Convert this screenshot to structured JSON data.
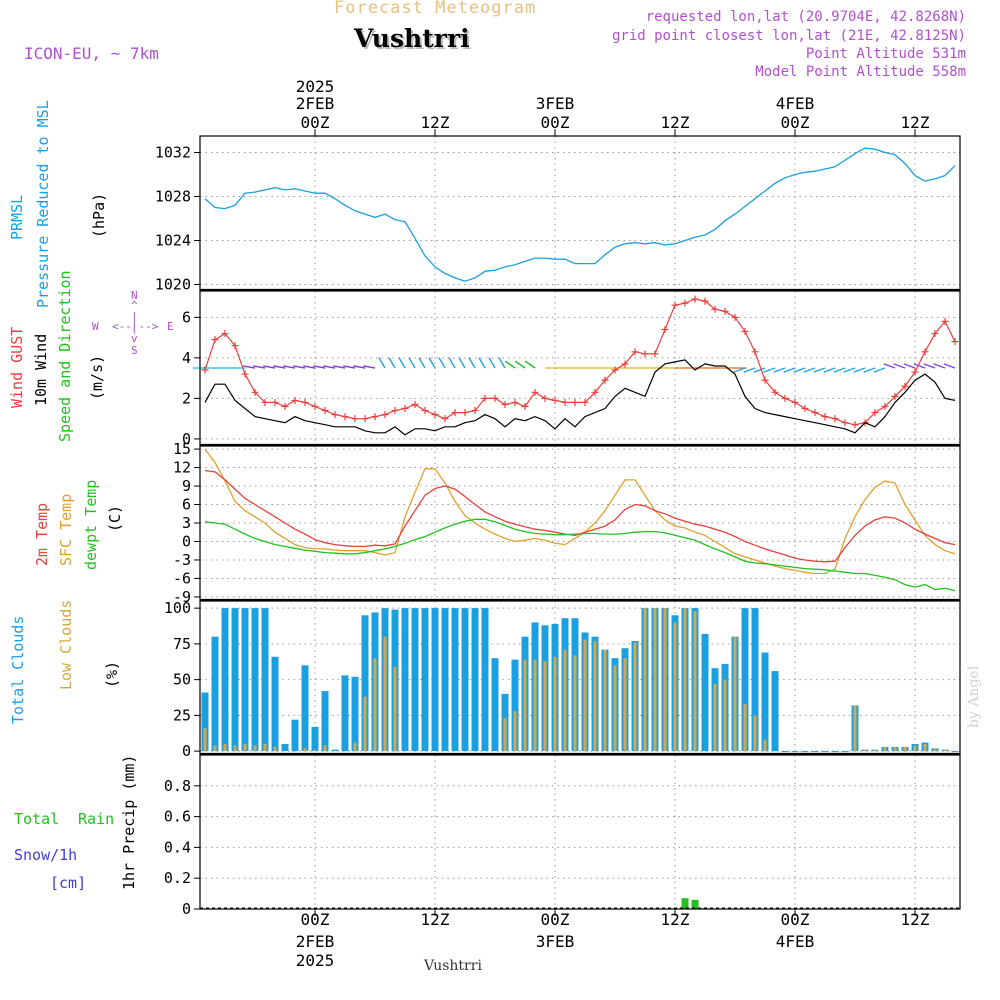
{
  "header": {
    "forecast_title": "Forecast Meteogram",
    "location": "Vushtrri",
    "model": "ICON-EU, ~ 7km",
    "requested": "requested lon,lat (20.9704E, 42.8268N)",
    "grid_point": "grid point closest lon,lat (21E, 42.8125N)",
    "point_altitude": "Point Altitude 531m",
    "model_altitude": "Model Point Altitude 558m",
    "footer_location": "Vushtrri",
    "credit": "by Angel"
  },
  "time_axis": {
    "year_label": "2025",
    "ticks": [
      {
        "hour": 24,
        "label": "00Z",
        "date": "2FEB",
        "year": "2025"
      },
      {
        "hour": 36,
        "label": "12Z",
        "date": "",
        "year": ""
      },
      {
        "hour": 48,
        "label": "00Z",
        "date": "3FEB",
        "year": ""
      },
      {
        "hour": 60,
        "label": "12Z",
        "date": "",
        "year": ""
      },
      {
        "hour": 72,
        "label": "00Z",
        "date": "4FEB",
        "year": ""
      },
      {
        "hour": 84,
        "label": "12Z",
        "date": "",
        "year": ""
      }
    ],
    "range": [
      12.5,
      88.5
    ]
  },
  "panel_labels": {
    "pressure": [
      "PRMSL",
      "Pressure Reduced to MSL",
      "(hPa)"
    ],
    "wind": [
      "Wind GUST",
      "10m Wind",
      "Speed and Direction",
      "(m/s)"
    ],
    "compass": {
      "n": "N",
      "s": "S",
      "w": "W",
      "e": "E"
    },
    "temp": [
      "2m Temp",
      "SFC Temp",
      "dewpt Temp",
      "(C)"
    ],
    "clouds": [
      "Total Clouds",
      "Low Clouds",
      "(%)"
    ],
    "precip": [
      "Total",
      "Rain",
      "Snow/1h",
      "[cm]",
      "1hr Precip (mm)"
    ]
  },
  "colors": {
    "pressure": "#1a9fe0",
    "gust": "#e8403c",
    "wind": "#000000",
    "sfc_temp": "#e0a030",
    "t2m": "#e8403c",
    "dewpt": "#22c022",
    "total_clouds": "#1a9fe0",
    "low_clouds": "#d4a848",
    "rain": "#22c022",
    "title": "#e8c080",
    "info": "#b050d0",
    "snow": "#4040d0"
  },
  "chart_data": [
    {
      "type": "line",
      "name": "pressure",
      "ylim": [
        1019.5,
        1033.5
      ],
      "yticks": [
        1020,
        1024,
        1028,
        1032
      ],
      "x": [
        13,
        14,
        15,
        16,
        17,
        18,
        19,
        20,
        21,
        22,
        23,
        24,
        25,
        26,
        27,
        28,
        29,
        30,
        31,
        32,
        33,
        34,
        35,
        36,
        37,
        38,
        39,
        40,
        41,
        42,
        43,
        44,
        45,
        46,
        47,
        48,
        49,
        50,
        51,
        52,
        53,
        54,
        55,
        56,
        57,
        58,
        59,
        60,
        61,
        62,
        63,
        64,
        65,
        66,
        67,
        68,
        69,
        70,
        71,
        72,
        73,
        74,
        75,
        76,
        77,
        78,
        79,
        80,
        81,
        82,
        83,
        84,
        85,
        86,
        87,
        88
      ],
      "series": [
        {
          "values": [
            1027.8,
            1027.0,
            1026.9,
            1027.2,
            1028.3,
            1028.4,
            1028.6,
            1028.8,
            1028.6,
            1028.7,
            1028.5,
            1028.3,
            1028.3,
            1027.8,
            1027.2,
            1026.7,
            1026.4,
            1026.1,
            1026.4,
            1025.9,
            1025.7,
            1024.2,
            1022.6,
            1021.6,
            1021.0,
            1020.6,
            1020.3,
            1020.6,
            1021.2,
            1021.3,
            1021.6,
            1021.8,
            1022.1,
            1022.4,
            1022.4,
            1022.3,
            1022.3,
            1021.9,
            1021.9,
            1021.9,
            1022.7,
            1023.4,
            1023.7,
            1023.8,
            1023.7,
            1023.8,
            1023.6,
            1023.7,
            1024.0,
            1024.3,
            1024.5,
            1025.0,
            1025.8,
            1026.4,
            1027.1,
            1027.8,
            1028.5,
            1029.2,
            1029.7,
            1030.0,
            1030.2,
            1030.3,
            1030.5,
            1030.7,
            1031.3,
            1031.9,
            1032.4,
            1032.3,
            1032.0,
            1031.8,
            1031.0,
            1029.9,
            1029.4,
            1029.6,
            1029.9,
            1030.8
          ]
        }
      ]
    },
    {
      "type": "line",
      "name": "wind",
      "ylim": [
        -0.3,
        7.3
      ],
      "yticks": [
        0,
        2,
        4,
        6
      ],
      "x": [
        13,
        14,
        15,
        16,
        17,
        18,
        19,
        20,
        21,
        22,
        23,
        24,
        25,
        26,
        27,
        28,
        29,
        30,
        31,
        32,
        33,
        34,
        35,
        36,
        37,
        38,
        39,
        40,
        41,
        42,
        43,
        44,
        45,
        46,
        47,
        48,
        49,
        50,
        51,
        52,
        53,
        54,
        55,
        56,
        57,
        58,
        59,
        60,
        61,
        62,
        63,
        64,
        65,
        66,
        67,
        68,
        69,
        70,
        71,
        72,
        73,
        74,
        75,
        76,
        77,
        78,
        79,
        80,
        81,
        82,
        83,
        84,
        85,
        86,
        87,
        88
      ],
      "series": [
        {
          "name": "gust",
          "values": [
            3.4,
            4.9,
            5.2,
            4.6,
            3.2,
            2.3,
            1.8,
            1.8,
            1.6,
            1.9,
            1.8,
            1.6,
            1.4,
            1.2,
            1.1,
            1.0,
            1.0,
            1.1,
            1.2,
            1.4,
            1.5,
            1.7,
            1.4,
            1.2,
            1.0,
            1.3,
            1.3,
            1.4,
            2.0,
            2.0,
            1.7,
            1.8,
            1.6,
            2.3,
            2.0,
            1.9,
            1.8,
            1.8,
            1.8,
            2.3,
            2.9,
            3.4,
            3.7,
            4.3,
            4.2,
            4.2,
            5.4,
            6.6,
            6.7,
            6.9,
            6.8,
            6.4,
            6.3,
            6.0,
            5.3,
            4.3,
            2.9,
            2.3,
            2.0,
            1.8,
            1.5,
            1.3,
            1.1,
            1.0,
            0.8,
            0.7,
            0.8,
            1.3,
            1.6,
            2.1,
            2.6,
            3.3,
            4.3,
            5.2,
            5.8,
            4.8
          ]
        },
        {
          "name": "wind",
          "values": [
            1.8,
            2.7,
            2.7,
            1.9,
            1.5,
            1.1,
            1.0,
            0.9,
            0.8,
            1.1,
            0.9,
            0.8,
            0.7,
            0.6,
            0.6,
            0.6,
            0.4,
            0.3,
            0.3,
            0.6,
            0.2,
            0.5,
            0.5,
            0.4,
            0.6,
            0.6,
            0.8,
            0.9,
            1.2,
            1.0,
            0.6,
            1.0,
            0.9,
            1.1,
            0.9,
            0.5,
            1.0,
            0.6,
            1.1,
            1.3,
            1.5,
            2.1,
            2.5,
            2.3,
            2.1,
            3.3,
            3.7,
            3.8,
            3.9,
            3.4,
            3.7,
            3.6,
            3.6,
            3.2,
            2.1,
            1.5,
            1.3,
            1.2,
            1.1,
            1.0,
            0.9,
            0.8,
            0.7,
            0.6,
            0.5,
            0.3,
            0.8,
            0.6,
            1.1,
            1.8,
            2.3,
            2.9,
            3.2,
            2.8,
            2.0,
            1.9
          ]
        }
      ]
    },
    {
      "type": "line",
      "name": "temperature",
      "ylim": [
        -9.5,
        15.5
      ],
      "yticks": [
        -9,
        -6,
        -3,
        0,
        3,
        6,
        9,
        12,
        15
      ],
      "x": [
        13,
        14,
        15,
        16,
        17,
        18,
        19,
        20,
        21,
        22,
        23,
        24,
        25,
        26,
        27,
        28,
        29,
        30,
        31,
        32,
        33,
        34,
        35,
        36,
        37,
        38,
        39,
        40,
        41,
        42,
        43,
        44,
        45,
        46,
        47,
        48,
        49,
        50,
        51,
        52,
        53,
        54,
        55,
        56,
        57,
        58,
        59,
        60,
        61,
        62,
        63,
        64,
        65,
        66,
        67,
        68,
        69,
        70,
        71,
        72,
        73,
        74,
        75,
        76,
        77,
        78,
        79,
        80,
        81,
        82,
        83,
        84,
        85,
        86,
        87,
        88
      ],
      "series": [
        {
          "name": "sfc",
          "values": [
            15.0,
            12.8,
            9.8,
            6.5,
            5.0,
            4.0,
            3.0,
            1.5,
            0.5,
            -0.5,
            -1.0,
            -1.2,
            -1.2,
            -1.4,
            -1.5,
            -1.5,
            -1.5,
            -1.8,
            -2.2,
            -1.8,
            4.0,
            8.0,
            11.8,
            11.8,
            9.5,
            6.5,
            4.2,
            3.0,
            2.0,
            1.2,
            0.5,
            0.0,
            0.2,
            0.5,
            0.2,
            -0.3,
            -0.5,
            0.5,
            1.5,
            3.0,
            5.0,
            7.5,
            10.0,
            10.0,
            7.5,
            5.0,
            3.5,
            2.5,
            2.2,
            1.5,
            1.0,
            0.0,
            -1.0,
            -2.0,
            -2.5,
            -3.0,
            -3.5,
            -4.0,
            -4.4,
            -4.7,
            -5.0,
            -5.2,
            -5.2,
            -4.5,
            0.5,
            4.0,
            6.8,
            8.8,
            9.8,
            9.5,
            6.0,
            3.5,
            1.0,
            -0.5,
            -1.5,
            -2.0
          ]
        },
        {
          "name": "t2m",
          "values": [
            11.5,
            11.3,
            10.0,
            8.5,
            7.0,
            6.0,
            5.0,
            4.0,
            3.0,
            2.0,
            1.2,
            0.3,
            -0.2,
            -0.5,
            -0.7,
            -0.8,
            -0.8,
            -0.6,
            -0.7,
            -0.4,
            2.5,
            5.0,
            7.5,
            8.6,
            9.0,
            8.5,
            7.3,
            6.0,
            4.8,
            4.0,
            3.3,
            2.8,
            2.4,
            2.0,
            1.8,
            1.5,
            1.2,
            1.0,
            1.5,
            2.0,
            2.5,
            3.5,
            5.2,
            6.0,
            5.8,
            5.0,
            4.5,
            3.8,
            3.3,
            2.8,
            2.5,
            2.0,
            1.5,
            0.8,
            0.0,
            -0.6,
            -1.2,
            -1.7,
            -2.2,
            -2.7,
            -3.0,
            -3.2,
            -3.3,
            -3.2,
            -1.0,
            1.0,
            2.5,
            3.5,
            4.0,
            3.8,
            3.0,
            2.0,
            1.2,
            0.5,
            -0.2,
            -0.5
          ]
        },
        {
          "name": "dewpt",
          "values": [
            3.2,
            3.0,
            2.8,
            2.0,
            1.2,
            0.5,
            0.0,
            -0.5,
            -0.8,
            -1.1,
            -1.4,
            -1.6,
            -1.8,
            -1.9,
            -2.0,
            -2.0,
            -1.8,
            -1.5,
            -1.2,
            -0.8,
            -0.3,
            0.3,
            0.8,
            1.5,
            2.2,
            2.8,
            3.3,
            3.6,
            3.6,
            3.2,
            2.6,
            2.0,
            1.6,
            1.3,
            1.2,
            1.1,
            1.1,
            1.2,
            1.3,
            1.3,
            1.2,
            1.2,
            1.3,
            1.5,
            1.6,
            1.6,
            1.4,
            1.0,
            0.6,
            0.2,
            -0.5,
            -1.2,
            -1.8,
            -2.5,
            -3.2,
            -3.5,
            -3.6,
            -3.8,
            -4.0,
            -4.2,
            -4.4,
            -4.5,
            -4.6,
            -4.8,
            -5.0,
            -5.2,
            -5.2,
            -5.5,
            -5.8,
            -6.2,
            -7.0,
            -7.4,
            -7.0,
            -7.8,
            -7.6,
            -8.0
          ]
        }
      ]
    },
    {
      "type": "bar",
      "name": "clouds",
      "ylim": [
        -2,
        105
      ],
      "yticks": [
        0,
        25,
        50,
        75,
        100
      ],
      "x": [
        13,
        14,
        15,
        16,
        17,
        18,
        19,
        20,
        21,
        22,
        23,
        24,
        25,
        26,
        27,
        28,
        29,
        30,
        31,
        32,
        33,
        34,
        35,
        36,
        37,
        38,
        39,
        40,
        41,
        42,
        43,
        44,
        45,
        46,
        47,
        48,
        49,
        50,
        51,
        52,
        53,
        54,
        55,
        56,
        57,
        58,
        59,
        60,
        61,
        62,
        63,
        64,
        65,
        66,
        67,
        68,
        69,
        70,
        71,
        72,
        73,
        74,
        75,
        76,
        77,
        78,
        79,
        80,
        81,
        82,
        83,
        84,
        85,
        86,
        87,
        88
      ],
      "series": [
        {
          "name": "total",
          "values": [
            41,
            80,
            100,
            100,
            100,
            100,
            100,
            66,
            5,
            22,
            60,
            17,
            42,
            1,
            53,
            52,
            95,
            97,
            100,
            99,
            100,
            100,
            100,
            100,
            100,
            100,
            100,
            100,
            100,
            65,
            40,
            64,
            80,
            90,
            88,
            89,
            93,
            93,
            83,
            80,
            71,
            65,
            72,
            77,
            100,
            100,
            100,
            95,
            100,
            100,
            82,
            58,
            61,
            80,
            100,
            100,
            69,
            56,
            0,
            0,
            0,
            0,
            0,
            0,
            0,
            32,
            1,
            1,
            3,
            3,
            3,
            5,
            6,
            2,
            1,
            0
          ]
        },
        {
          "name": "low",
          "values": [
            16,
            4,
            5,
            4,
            5,
            4,
            5,
            3,
            0,
            0,
            2,
            1,
            4,
            0,
            0,
            6,
            38,
            65,
            80,
            59,
            0,
            0,
            0,
            0,
            0,
            0,
            0,
            0,
            0,
            0,
            23,
            28,
            64,
            64,
            63,
            66,
            71,
            67,
            78,
            77,
            71,
            60,
            65,
            76,
            100,
            100,
            100,
            90,
            100,
            98,
            0,
            47,
            50,
            80,
            33,
            25,
            8,
            0,
            0,
            0,
            0,
            0,
            0,
            0,
            0,
            32,
            1,
            1,
            3,
            3,
            3,
            4,
            5,
            2,
            1,
            0
          ]
        }
      ]
    },
    {
      "type": "bar",
      "name": "precip",
      "ylim": [
        0,
        1
      ],
      "yticks": [
        0,
        0.2,
        0.4,
        0.6,
        0.8
      ],
      "x": [
        61,
        62,
        63
      ],
      "series": [
        {
          "name": "rain",
          "values": [
            0.07,
            0.06,
            0.005
          ]
        }
      ]
    }
  ]
}
